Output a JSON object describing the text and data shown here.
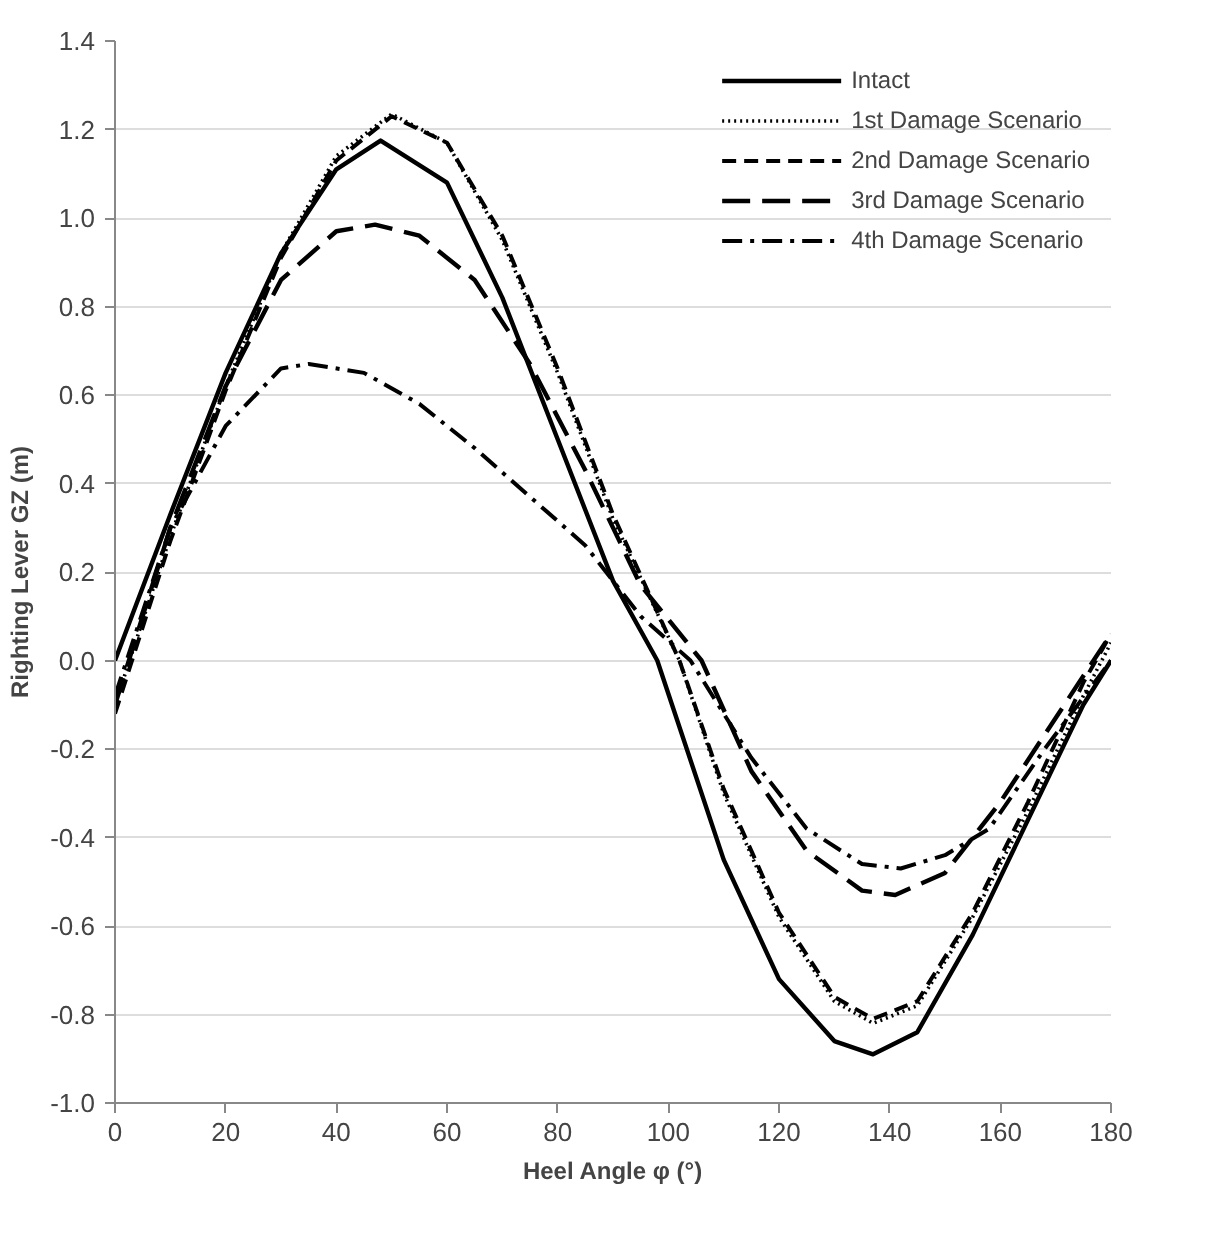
{
  "chart_data": {
    "type": "line",
    "xlabel": "Heel Angle φ (°)",
    "ylabel": "Righting Lever GZ (m)",
    "xlim": [
      0,
      180
    ],
    "xticks": [
      0,
      20,
      40,
      60,
      80,
      100,
      120,
      140,
      160,
      180
    ],
    "ylim": [
      -1.0,
      1.4
    ],
    "yticks": [
      {
        "value": -1.0,
        "label": "-1.0"
      },
      {
        "value": -0.8,
        "label": "-0.8"
      },
      {
        "value": -0.6,
        "label": "-0.6"
      },
      {
        "value": -0.4,
        "label": "-0.4"
      },
      {
        "value": -0.2,
        "label": "-0.2"
      },
      {
        "value": 0,
        "label": "0.0"
      },
      {
        "value": 0.2,
        "label": "0.2"
      },
      {
        "value": 0.4,
        "label": "0.4"
      },
      {
        "value": 0.6,
        "label": "0.6"
      },
      {
        "value": 0.8,
        "label": "0.8"
      },
      {
        "value": 1.0,
        "label": "1.0"
      },
      {
        "value": 1.2,
        "label": "1.2"
      },
      {
        "value": 1.4,
        "label": "1.4"
      }
    ],
    "grid": "y",
    "legend": "top right",
    "marker": "none",
    "series": [
      {
        "name": "Intact",
        "color": "#000000",
        "line_style": "solid",
        "x": [
          0,
          10,
          20,
          30,
          40,
          48,
          60,
          70,
          80,
          90,
          98,
          110,
          120,
          130,
          137,
          145,
          155,
          165,
          175,
          180
        ],
        "values": [
          0,
          0.33,
          0.65,
          0.92,
          1.11,
          1.175,
          1.08,
          0.82,
          0.5,
          0.18,
          0,
          -0.45,
          -0.72,
          -0.86,
          -0.89,
          -0.84,
          -0.62,
          -0.36,
          -0.1,
          0
        ]
      },
      {
        "name": "1st Damage Scenario",
        "color": "#000000",
        "line_style": "dotted",
        "x": [
          0,
          10,
          20,
          30,
          40,
          50,
          60,
          70,
          80,
          90,
          102,
          110,
          120,
          130,
          137,
          145,
          155,
          165,
          175,
          180
        ],
        "values": [
          -0.1,
          0.28,
          0.62,
          0.92,
          1.14,
          1.235,
          1.17,
          0.95,
          0.65,
          0.32,
          0,
          -0.3,
          -0.58,
          -0.77,
          -0.82,
          -0.78,
          -0.58,
          -0.34,
          -0.08,
          0.04
        ]
      },
      {
        "name": "2nd Damage Scenario",
        "color": "#000000",
        "line_style": "dashed",
        "x": [
          0,
          10,
          20,
          30,
          40,
          50,
          60,
          70,
          80,
          90,
          102,
          110,
          120,
          130,
          137,
          145,
          155,
          165,
          175,
          180
        ],
        "values": [
          -0.12,
          0.27,
          0.61,
          0.91,
          1.13,
          1.23,
          1.17,
          0.96,
          0.66,
          0.33,
          0,
          -0.29,
          -0.57,
          -0.76,
          -0.81,
          -0.77,
          -0.57,
          -0.32,
          -0.05,
          0.06
        ]
      },
      {
        "name": "3rd Damage Scenario",
        "color": "#000000",
        "line_style": "longdash",
        "x": [
          0,
          10,
          20,
          30,
          40,
          47,
          55,
          65,
          75,
          85,
          95,
          106,
          115,
          125,
          135,
          141,
          150,
          160,
          170,
          180
        ],
        "values": [
          -0.1,
          0.3,
          0.62,
          0.86,
          0.97,
          0.985,
          0.96,
          0.86,
          0.67,
          0.43,
          0.17,
          0,
          -0.25,
          -0.43,
          -0.52,
          -0.53,
          -0.48,
          -0.32,
          -0.13,
          0.06
        ]
      },
      {
        "name": "4th Damage Scenario",
        "color": "#000000",
        "line_style": "dashdot",
        "x": [
          0,
          10,
          20,
          30,
          35,
          45,
          55,
          65,
          75,
          85,
          95,
          104,
          115,
          125,
          135,
          142,
          150,
          158,
          168,
          180
        ],
        "values": [
          -0.08,
          0.3,
          0.53,
          0.66,
          0.67,
          0.65,
          0.58,
          0.48,
          0.37,
          0.26,
          0.1,
          0,
          -0.22,
          -0.38,
          -0.46,
          -0.47,
          -0.44,
          -0.38,
          -0.2,
          0
        ]
      }
    ]
  }
}
